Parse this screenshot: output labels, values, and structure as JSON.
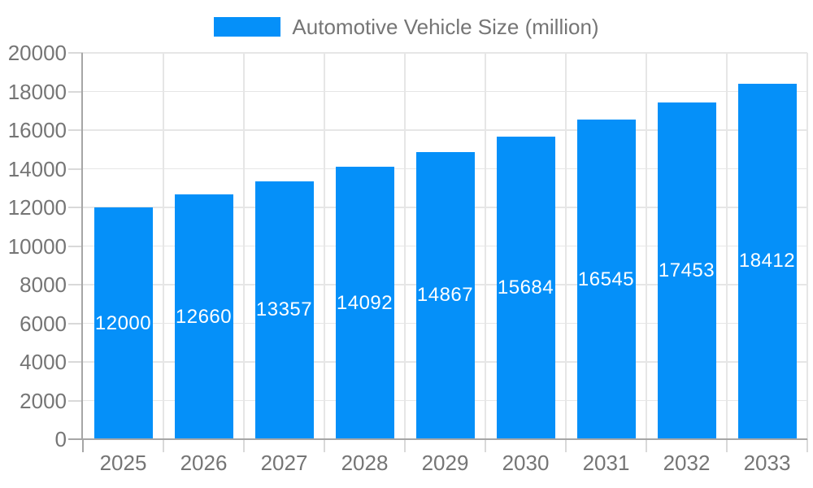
{
  "legend": {
    "label": "Automotive Vehicle Size (million)"
  },
  "chart_data": {
    "type": "bar",
    "title": "",
    "series_name": "Automotive Vehicle Size (million)",
    "categories": [
      "2025",
      "2026",
      "2027",
      "2028",
      "2029",
      "2030",
      "2031",
      "2032",
      "2033"
    ],
    "values": [
      12000,
      12660,
      13357,
      14092,
      14867,
      15684,
      16545,
      17453,
      18412
    ],
    "xlabel": "",
    "ylabel": "",
    "ylim": [
      0,
      20000
    ],
    "ytick_step": 2000,
    "yticks": [
      0,
      2000,
      4000,
      6000,
      8000,
      10000,
      12000,
      14000,
      16000,
      18000,
      20000
    ],
    "grid": true,
    "legend_position": "top",
    "colors": {
      "bar": "#0590f9",
      "bar_value_label": "#ffffff",
      "gridline": "#e6e6e6",
      "axis_line": "#a6a6a6",
      "tick_mark": "#d9d9d9",
      "tick_text": "#757575",
      "legend_text": "#757575"
    }
  }
}
